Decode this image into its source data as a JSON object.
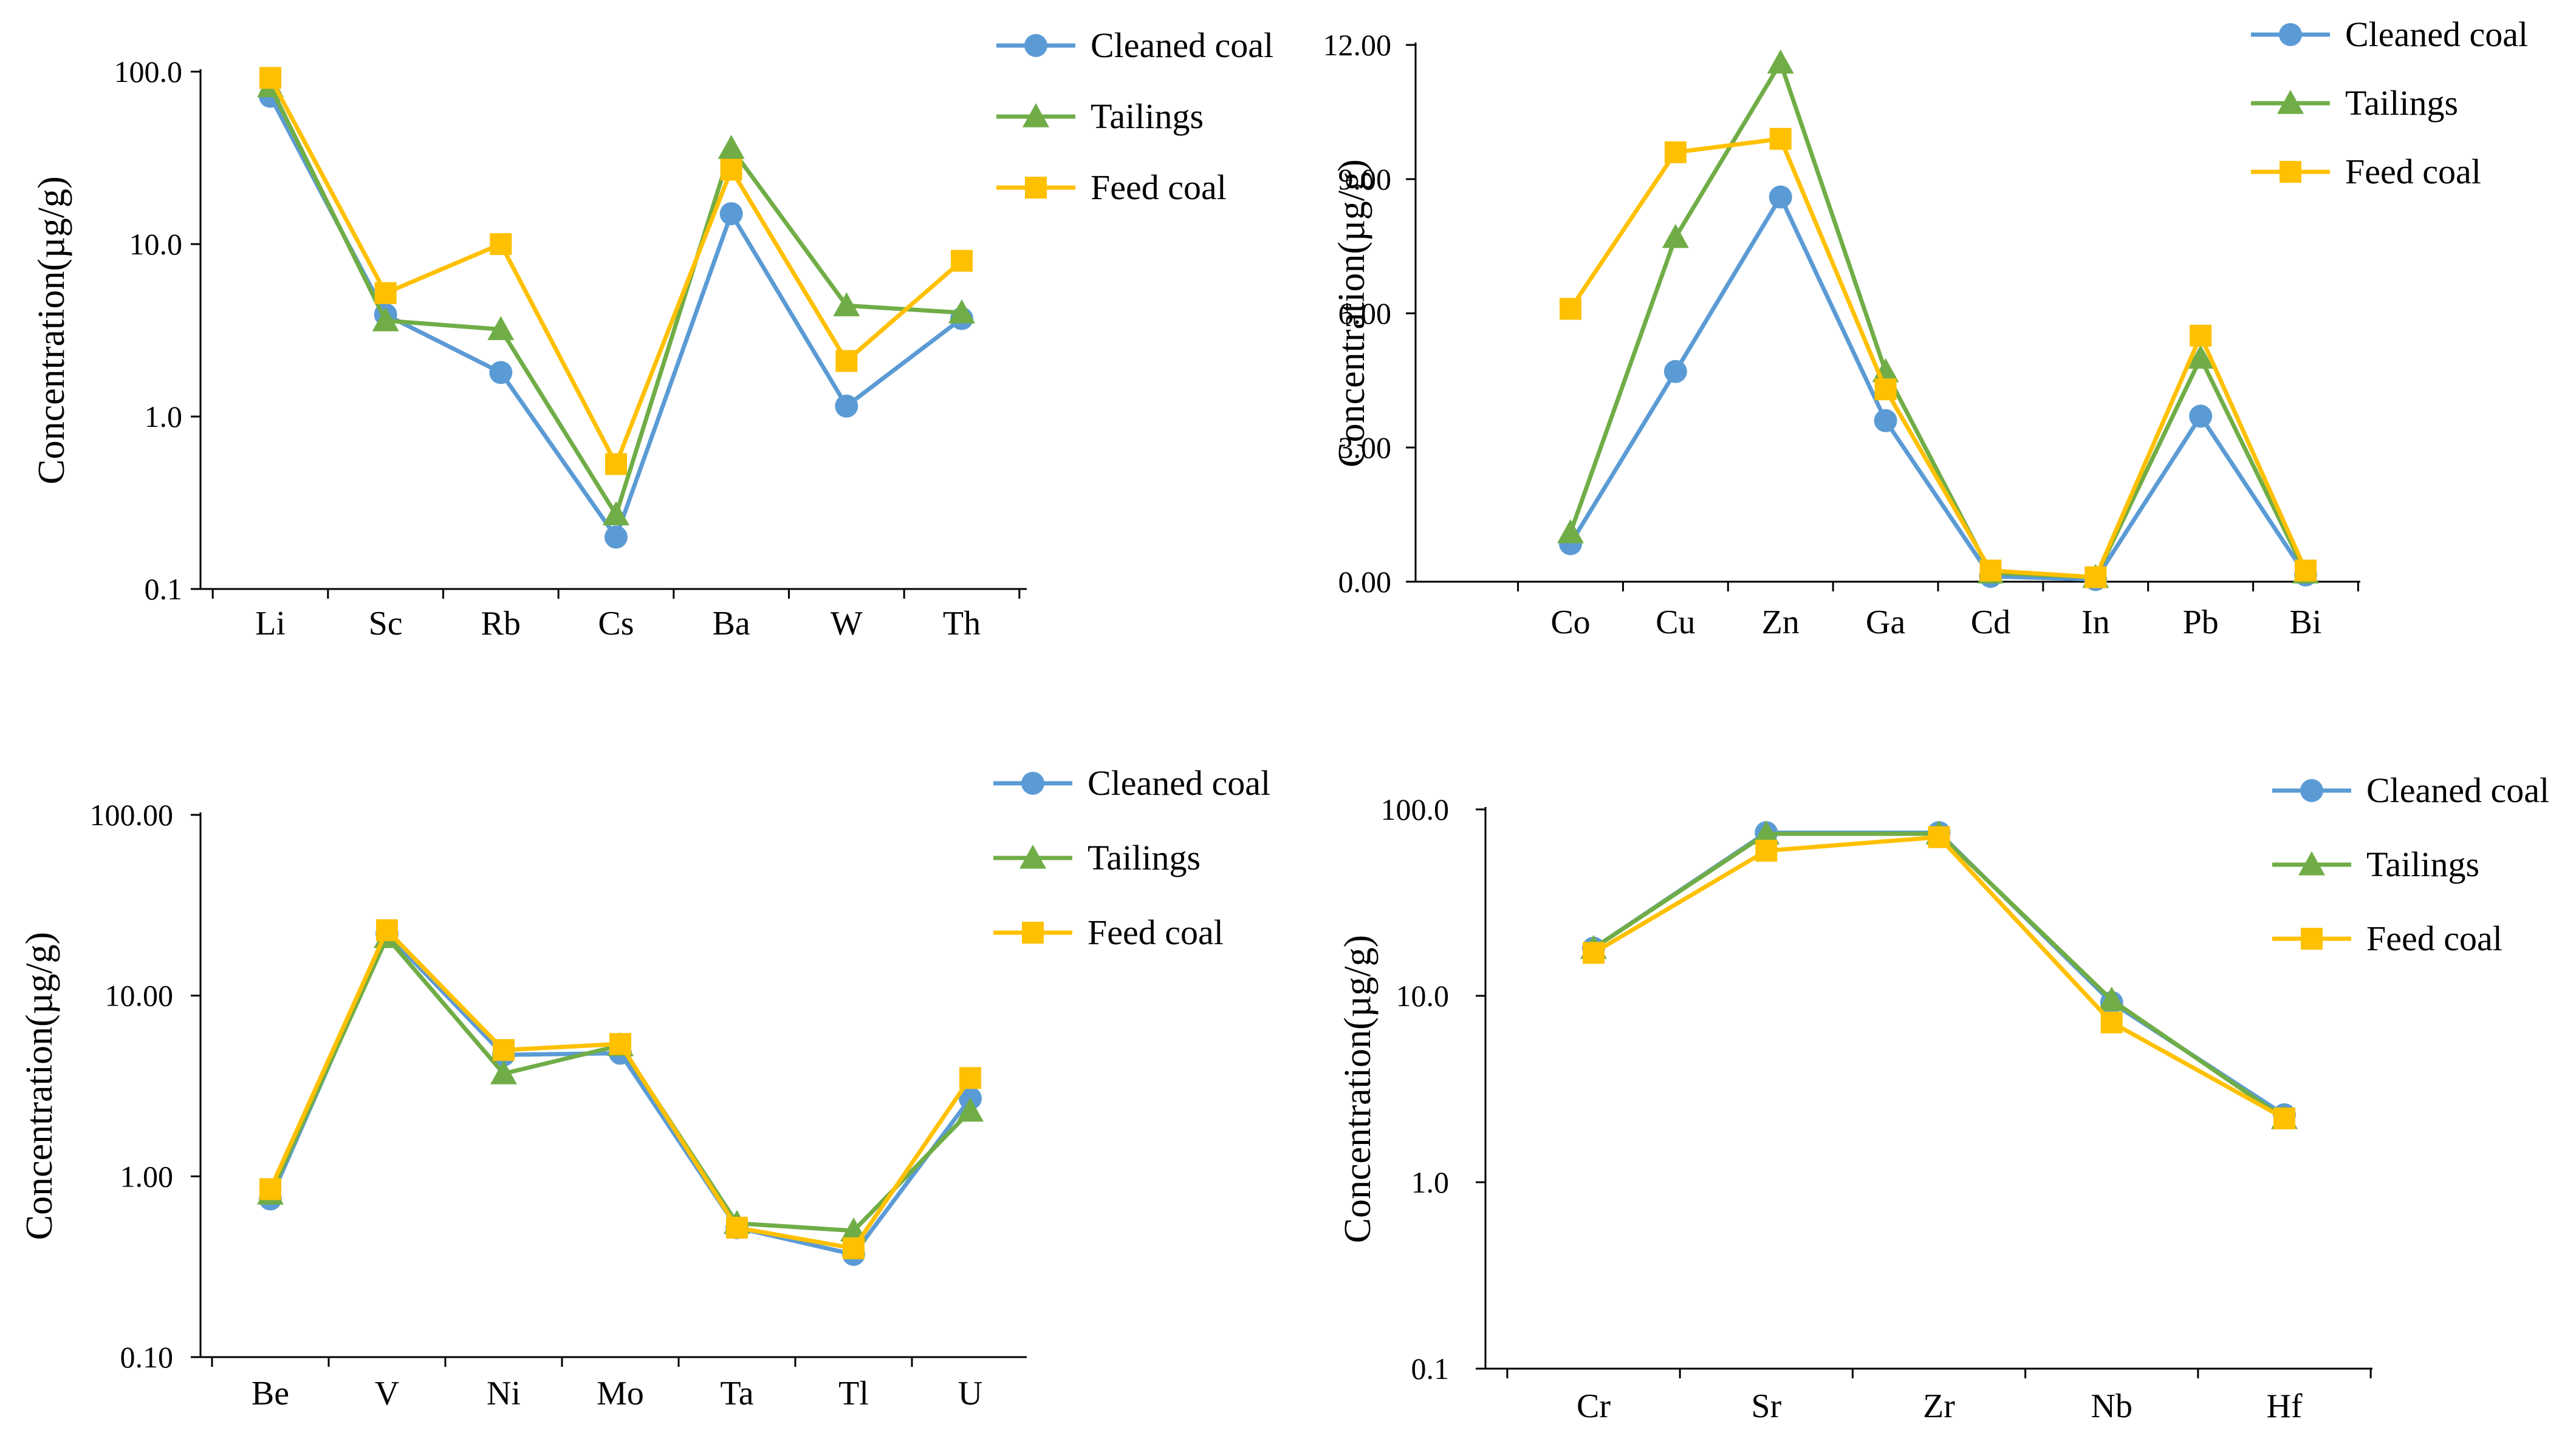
{
  "colors": {
    "cleaned": "#5b9bd5",
    "tailings": "#70ad47",
    "feed": "#ffc000",
    "axis": "#000000"
  },
  "chart_data": [
    {
      "type": "line",
      "scale": "log",
      "ylim": [
        0.1,
        100
      ],
      "ticks": [
        0.1,
        1,
        10,
        100
      ],
      "tick_labels": [
        "0.1",
        "1.0",
        "10.0",
        "100.0"
      ],
      "ylabel": "Concentration(µg/g)",
      "categories": [
        "Li",
        "Sc",
        "Rb",
        "Cs",
        "Ba",
        "W",
        "Th"
      ],
      "series": [
        {
          "name": "Cleaned coal",
          "marker": "circle",
          "values": [
            72,
            3.9,
            1.8,
            0.2,
            15,
            1.15,
            3.7
          ]
        },
        {
          "name": "Tailings",
          "marker": "triangle",
          "values": [
            82,
            3.6,
            3.2,
            0.27,
            36,
            4.4,
            4.0
          ]
        },
        {
          "name": "Feed coal",
          "marker": "square",
          "values": [
            92,
            5.2,
            10,
            0.53,
            27,
            2.1,
            8.0
          ]
        }
      ]
    },
    {
      "type": "line",
      "scale": "linear",
      "ylim": [
        0,
        12
      ],
      "ticks": [
        0,
        3,
        6,
        9,
        12
      ],
      "tick_labels": [
        "0.00",
        "3.00",
        "6.00",
        "9.00",
        "12.00"
      ],
      "ylabel": "Concentration(µg/g)",
      "categories": [
        "Co",
        "Cu",
        "Zn",
        "Ga",
        "Cd",
        "In",
        "Pb",
        "Bi"
      ],
      "series": [
        {
          "name": "Cleaned coal",
          "marker": "circle",
          "values": [
            0.85,
            4.7,
            8.6,
            3.6,
            0.12,
            0.05,
            3.7,
            0.15
          ]
        },
        {
          "name": "Tailings",
          "marker": "triangle",
          "values": [
            1.1,
            7.7,
            11.6,
            4.7,
            0.2,
            0.1,
            5.0,
            0.2
          ]
        },
        {
          "name": "Feed coal",
          "marker": "square",
          "values": [
            6.1,
            9.6,
            9.9,
            4.3,
            0.25,
            0.1,
            5.5,
            0.25
          ]
        }
      ]
    },
    {
      "type": "line",
      "scale": "log",
      "ylim": [
        0.1,
        100
      ],
      "ticks": [
        0.1,
        1,
        10,
        100
      ],
      "tick_labels": [
        "0.10",
        "1.00",
        "10.00",
        "100.00"
      ],
      "ylabel": "Concentration(µg/g)",
      "categories": [
        "Be",
        "V",
        "Ni",
        "Mo",
        "Ta",
        "Tl",
        "U"
      ],
      "series": [
        {
          "name": "Cleaned coal",
          "marker": "circle",
          "values": [
            0.75,
            22,
            4.7,
            4.8,
            0.52,
            0.37,
            2.7
          ]
        },
        {
          "name": "Tailings",
          "marker": "triangle",
          "values": [
            0.8,
            21,
            3.7,
            5.3,
            0.55,
            0.5,
            2.3
          ]
        },
        {
          "name": "Feed coal",
          "marker": "square",
          "values": [
            0.85,
            23,
            5.0,
            5.4,
            0.52,
            0.4,
            3.5
          ]
        }
      ]
    },
    {
      "type": "line",
      "scale": "log",
      "ylim": [
        0.1,
        100
      ],
      "ticks": [
        0.1,
        1,
        10,
        100
      ],
      "tick_labels": [
        "0.1",
        "1.0",
        "10.0",
        "100.0"
      ],
      "ylabel": "Concentration(µg/g)",
      "categories": [
        "Cr",
        "Sr",
        "Zr",
        "Nb",
        "Hf"
      ],
      "series": [
        {
          "name": "Cleaned coal",
          "marker": "circle",
          "values": [
            18,
            75,
            75,
            9.2,
            2.3
          ]
        },
        {
          "name": "Tailings",
          "marker": "triangle",
          "values": [
            18,
            74,
            74,
            9.5,
            2.2
          ]
        },
        {
          "name": "Feed coal",
          "marker": "square",
          "values": [
            17,
            60,
            71,
            7.2,
            2.2
          ]
        }
      ]
    }
  ]
}
